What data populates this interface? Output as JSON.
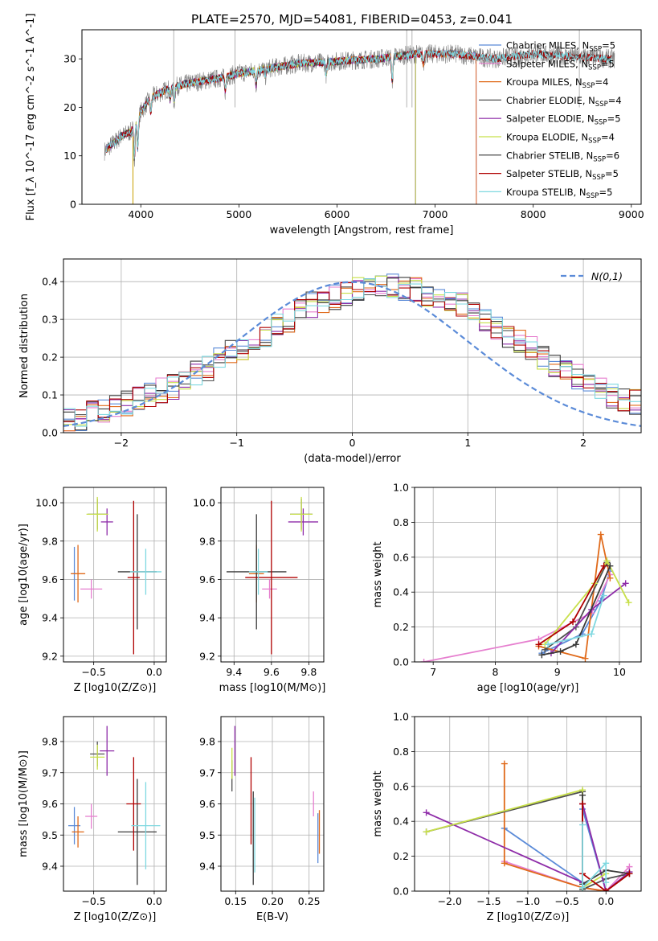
{
  "figure_title": "PLATE=2570, MJD=54081, FIBERID=0453, z=0.041",
  "colors": {
    "Chabrier MILES": "#5b8bd8",
    "Salpeter MILES": "#e67fcf",
    "Kroupa MILES": "#e06a1a",
    "Chabrier ELODIE": "#4f4f4f",
    "Salpeter ELODIE": "#8e2ca8",
    "Kroupa ELODIE": "#c8e04a",
    "Chabrier STELIB": "#3a3a3a",
    "Salpeter STELIB": "#b00000",
    "Kroupa STELIB": "#7fd8e0"
  },
  "chart_data": [
    {
      "id": "spectrum",
      "type": "line",
      "title": "PLATE=2570, MJD=54081, FIBERID=0453, z=0.041",
      "xlabel": "wavelength [Angstrom, rest frame]",
      "ylabel": "Flux [f_λ 10^-17 erg cm^-2 s^-1 A^-1]",
      "xlim": [
        3400,
        9100
      ],
      "ylim": [
        0,
        36
      ],
      "xticks": [
        4000,
        5000,
        6000,
        7000,
        8000,
        9000
      ],
      "yticks": [
        0,
        10,
        20,
        30
      ],
      "grid": false,
      "legend": "top-right",
      "data_envelope": {
        "x": [
          3630,
          3800,
          3900,
          4000,
          4100,
          4300,
          4500,
          4800,
          5000,
          5300,
          5600,
          6000,
          6400,
          6800,
          7200,
          7600,
          8000,
          8400,
          8800
        ],
        "y": [
          11,
          14,
          15,
          19,
          22,
          24,
          25,
          26,
          27,
          28,
          29,
          29.5,
          30,
          31,
          31,
          30,
          31,
          30.5,
          30
        ]
      },
      "series": [
        {
          "name": "Chabrier MILES, N_SSP=5",
          "end": 7420
        },
        {
          "name": "Salpeter MILES, N_SSP=5",
          "end": 7420
        },
        {
          "name": "Kroupa MILES, N_SSP=4",
          "end": 7420
        },
        {
          "name": "Chabrier ELODIE, N_SSP=4",
          "end": 6800
        },
        {
          "name": "Salpeter ELODIE, N_SSP=5",
          "end": 6800
        },
        {
          "name": "Kroupa ELODIE, N_SSP=4",
          "end": 6800
        },
        {
          "name": "Chabrier STELIB, N_SSP=6",
          "end": 8800
        },
        {
          "name": "Salpeter STELIB, N_SSP=5",
          "end": 8800
        },
        {
          "name": "Kroupa STELIB, N_SSP=5",
          "end": 8800
        }
      ]
    },
    {
      "id": "residuals",
      "type": "line",
      "xlabel": "(data-model)/error",
      "ylabel": "Normed distribution",
      "xlim": [
        -2.5,
        2.5
      ],
      "ylim": [
        0,
        0.46
      ],
      "xticks": [
        -2,
        -1,
        0,
        1,
        2
      ],
      "yticks": [
        0.0,
        0.1,
        0.2,
        0.3,
        0.4
      ],
      "grid": true,
      "legend": "top-right",
      "reference": {
        "name": "N(0,1)",
        "color": "#5b8bd8"
      },
      "bin_width": 0.1,
      "histogram_envelope": [
        0.03,
        0.04,
        0.05,
        0.06,
        0.07,
        0.08,
        0.09,
        0.1,
        0.11,
        0.12,
        0.14,
        0.16,
        0.17,
        0.19,
        0.21,
        0.22,
        0.24,
        0.26,
        0.28,
        0.3,
        0.32,
        0.34,
        0.35,
        0.36,
        0.37,
        0.38,
        0.38,
        0.39,
        0.39,
        0.38,
        0.38,
        0.37,
        0.36,
        0.35,
        0.34,
        0.32,
        0.3,
        0.28,
        0.26,
        0.24,
        0.22,
        0.2,
        0.18,
        0.16,
        0.15,
        0.13,
        0.12,
        0.1,
        0.09,
        0.08
      ]
    },
    {
      "id": "age_vs_Z",
      "type": "scatter",
      "xlabel": "Z [log10(Z/Z⊙)]",
      "ylabel": "age  [log10(age/yr)]",
      "xlim": [
        -0.75,
        0.1
      ],
      "ylim": [
        9.17,
        10.08
      ],
      "xticks": [
        -0.5,
        0.0
      ],
      "yticks": [
        9.2,
        9.4,
        9.6,
        9.8,
        10.0
      ],
      "grid": true,
      "points": [
        {
          "model": "Chabrier MILES",
          "x": -0.66,
          "y": 9.63,
          "xerr": 0.02,
          "yerr": 0.14
        },
        {
          "model": "Salpeter MILES",
          "x": -0.52,
          "y": 9.55,
          "xerr": 0.09,
          "yerr": 0.05
        },
        {
          "model": "Kroupa MILES",
          "x": -0.63,
          "y": 9.63,
          "xerr": 0.06,
          "yerr": 0.15
        },
        {
          "model": "Chabrier ELODIE",
          "x": -0.47,
          "y": 9.94,
          "xerr": 0.08,
          "yerr": 0.08
        },
        {
          "model": "Salpeter ELODIE",
          "x": -0.39,
          "y": 9.9,
          "xerr": 0.05,
          "yerr": 0.07
        },
        {
          "model": "Kroupa ELODIE",
          "x": -0.47,
          "y": 9.94,
          "xerr": 0.09,
          "yerr": 0.09
        },
        {
          "model": "Chabrier STELIB",
          "x": -0.14,
          "y": 9.64,
          "xerr": 0.16,
          "yerr": 0.3
        },
        {
          "model": "Salpeter STELIB",
          "x": -0.17,
          "y": 9.61,
          "xerr": 0.05,
          "yerr": 0.4
        },
        {
          "model": "Kroupa STELIB",
          "x": -0.07,
          "y": 9.64,
          "xerr": 0.13,
          "yerr": 0.12
        }
      ]
    },
    {
      "id": "age_vs_mass",
      "type": "scatter",
      "xlabel": "mass [log10(M/M⊙)]",
      "ylabel": "",
      "xlim": [
        9.33,
        9.88
      ],
      "ylim": [
        9.17,
        10.08
      ],
      "xticks": [
        9.4,
        9.6,
        9.8
      ],
      "yticks": [
        9.2,
        9.4,
        9.6,
        9.8,
        10.0
      ],
      "grid": true,
      "points": [
        {
          "model": "Chabrier MILES",
          "x": 9.52,
          "y": 9.63,
          "xerr": 0.02,
          "yerr": 0.14
        },
        {
          "model": "Salpeter MILES",
          "x": 9.59,
          "y": 9.55,
          "xerr": 0.04,
          "yerr": 0.05
        },
        {
          "model": "Kroupa MILES",
          "x": 9.52,
          "y": 9.63,
          "xerr": 0.04,
          "yerr": 0.15
        },
        {
          "model": "Chabrier ELODIE",
          "x": 9.76,
          "y": 9.94,
          "xerr": 0.06,
          "yerr": 0.08
        },
        {
          "model": "Salpeter ELODIE",
          "x": 9.77,
          "y": 9.9,
          "xerr": 0.08,
          "yerr": 0.07
        },
        {
          "model": "Kroupa ELODIE",
          "x": 9.76,
          "y": 9.94,
          "xerr": 0.06,
          "yerr": 0.09
        },
        {
          "model": "Chabrier STELIB",
          "x": 9.52,
          "y": 9.64,
          "xerr": 0.16,
          "yerr": 0.3
        },
        {
          "model": "Salpeter STELIB",
          "x": 9.6,
          "y": 9.61,
          "xerr": 0.14,
          "yerr": 0.4
        },
        {
          "model": "Kroupa STELIB",
          "x": 9.53,
          "y": 9.64,
          "xerr": 0.05,
          "yerr": 0.12
        }
      ]
    },
    {
      "id": "massweight_vs_age",
      "type": "line",
      "xlabel": "age  [log10(age/yr)]",
      "ylabel": "mass weight",
      "xlim": [
        6.7,
        10.35
      ],
      "ylim": [
        0,
        1
      ],
      "xticks": [
        7,
        8,
        9,
        10
      ],
      "yticks": [
        0.0,
        0.2,
        0.4,
        0.6,
        0.8,
        1.0
      ],
      "grid": true,
      "series": [
        {
          "model": "Chabrier MILES",
          "x": [
            8.75,
            9.4,
            9.7,
            9.85
          ],
          "y": [
            0.05,
            0.16,
            0.35,
            0.52
          ]
        },
        {
          "model": "Salpeter MILES",
          "x": [
            6.85,
            8.7,
            9.55,
            9.85
          ],
          "y": [
            0.0,
            0.13,
            0.28,
            0.5
          ]
        },
        {
          "model": "Kroupa MILES",
          "x": [
            8.7,
            9.45,
            9.7,
            9.85
          ],
          "y": [
            0.09,
            0.02,
            0.73,
            0.48
          ]
        },
        {
          "model": "Chabrier ELODIE",
          "x": [
            8.8,
            9.3,
            9.8
          ],
          "y": [
            0.07,
            0.2,
            0.57
          ]
        },
        {
          "model": "Salpeter ELODIE",
          "x": [
            8.9,
            9.55,
            10.1
          ],
          "y": [
            0.05,
            0.3,
            0.45
          ]
        },
        {
          "model": "Kroupa ELODIE",
          "x": [
            8.8,
            9.6,
            9.8,
            10.15
          ],
          "y": [
            0.1,
            0.45,
            0.58,
            0.34
          ]
        },
        {
          "model": "Chabrier STELIB",
          "x": [
            8.75,
            9.05,
            9.3,
            9.85
          ],
          "y": [
            0.04,
            0.06,
            0.1,
            0.55
          ]
        },
        {
          "model": "Salpeter STELIB",
          "x": [
            8.7,
            9.25,
            9.75
          ],
          "y": [
            0.1,
            0.23,
            0.55
          ]
        },
        {
          "model": "Kroupa STELIB",
          "x": [
            8.85,
            9.55,
            9.75
          ],
          "y": [
            0.1,
            0.16,
            0.38
          ]
        }
      ]
    },
    {
      "id": "mass_vs_Z",
      "type": "scatter",
      "xlabel": "Z [log10(Z/Z⊙)]",
      "ylabel": "mass [log10(M/M⊙)]",
      "xlim": [
        -0.75,
        0.1
      ],
      "ylim": [
        9.32,
        9.88
      ],
      "xticks": [
        -0.5,
        0.0
      ],
      "yticks": [
        9.4,
        9.5,
        9.6,
        9.7,
        9.8
      ],
      "grid": true,
      "points": [
        {
          "model": "Chabrier MILES",
          "x": -0.66,
          "y": 9.53,
          "xerr": 0.05,
          "yerr": 0.06
        },
        {
          "model": "Salpeter MILES",
          "x": -0.52,
          "y": 9.56,
          "xerr": 0.05,
          "yerr": 0.04
        },
        {
          "model": "Kroupa MILES",
          "x": -0.63,
          "y": 9.51,
          "xerr": 0.05,
          "yerr": 0.05
        },
        {
          "model": "Chabrier ELODIE",
          "x": -0.47,
          "y": 9.76,
          "xerr": 0.06,
          "yerr": 0.04
        },
        {
          "model": "Salpeter ELODIE",
          "x": -0.39,
          "y": 9.77,
          "xerr": 0.06,
          "yerr": 0.08
        },
        {
          "model": "Kroupa ELODIE",
          "x": -0.47,
          "y": 9.75,
          "xerr": 0.06,
          "yerr": 0.04
        },
        {
          "model": "Chabrier STELIB",
          "x": -0.14,
          "y": 9.51,
          "xerr": 0.16,
          "yerr": 0.17
        },
        {
          "model": "Salpeter STELIB",
          "x": -0.17,
          "y": 9.6,
          "xerr": 0.06,
          "yerr": 0.15
        },
        {
          "model": "Kroupa STELIB",
          "x": -0.07,
          "y": 9.53,
          "xerr": 0.12,
          "yerr": 0.14
        }
      ]
    },
    {
      "id": "mass_vs_ebv",
      "type": "scatter",
      "xlabel": "E(B-V)",
      "ylabel": "",
      "xlim": [
        0.13,
        0.27
      ],
      "ylim": [
        9.32,
        9.88
      ],
      "xticks": [
        0.15,
        0.2,
        0.25
      ],
      "yticks": [
        9.4,
        9.5,
        9.6,
        9.7,
        9.8
      ],
      "grid": true,
      "points": [
        {
          "model": "Chabrier MILES",
          "x": 0.262,
          "y": 9.49,
          "yerr": 0.08
        },
        {
          "model": "Salpeter MILES",
          "x": 0.256,
          "y": 9.6,
          "yerr": 0.04
        },
        {
          "model": "Kroupa MILES",
          "x": 0.264,
          "y": 9.51,
          "yerr": 0.07
        },
        {
          "model": "Chabrier ELODIE",
          "x": 0.145,
          "y": 9.69,
          "yerr": 0.05
        },
        {
          "model": "Salpeter ELODIE",
          "x": 0.149,
          "y": 9.77,
          "yerr": 0.08
        },
        {
          "model": "Kroupa ELODIE",
          "x": 0.145,
          "y": 9.73,
          "yerr": 0.05
        },
        {
          "model": "Chabrier STELIB",
          "x": 0.174,
          "y": 9.49,
          "yerr": 0.15
        },
        {
          "model": "Salpeter STELIB",
          "x": 0.171,
          "y": 9.61,
          "yerr": 0.14
        },
        {
          "model": "Kroupa STELIB",
          "x": 0.176,
          "y": 9.5,
          "yerr": 0.12
        }
      ]
    },
    {
      "id": "massweight_vs_Z",
      "type": "line",
      "xlabel": "Z [log10(Z/Z⊙)]",
      "ylabel": "mass weight",
      "xlim": [
        -2.45,
        0.45
      ],
      "ylim": [
        0,
        1
      ],
      "xticks": [
        -2.0,
        -1.5,
        -1.0,
        -0.5,
        0.0
      ],
      "yticks": [
        0.0,
        0.2,
        0.4,
        0.6,
        0.8,
        1.0
      ],
      "grid": true,
      "series": [
        {
          "model": "Chabrier MILES",
          "x": [
            -1.3,
            -0.3,
            -0.3,
            0.0,
            0.3
          ],
          "y": [
            0.36,
            0.05,
            0.47,
            0.0,
            0.1
          ]
        },
        {
          "model": "Salpeter MILES",
          "x": [
            -1.3,
            -0.3,
            0.0,
            0.3
          ],
          "y": [
            0.17,
            0.02,
            0.0,
            0.14
          ]
        },
        {
          "model": "Kroupa MILES",
          "x": [
            -1.3,
            -1.3,
            -0.3,
            0.0,
            0.3
          ],
          "y": [
            0.73,
            0.16,
            0.02,
            0.0,
            0.1
          ]
        },
        {
          "model": "Chabrier ELODIE",
          "x": [
            -2.3,
            -0.3,
            -0.3,
            0.0,
            0.3
          ],
          "y": [
            0.34,
            0.57,
            0.01,
            0.07,
            0.1
          ]
        },
        {
          "model": "Salpeter ELODIE",
          "x": [
            -2.3,
            -0.3,
            -0.3,
            0.0,
            0.3
          ],
          "y": [
            0.45,
            0.05,
            0.5,
            0.0,
            0.11
          ]
        },
        {
          "model": "Kroupa ELODIE",
          "x": [
            -2.3,
            -0.3,
            -0.3,
            0.0
          ],
          "y": [
            0.34,
            0.58,
            0.02,
            0.1
          ]
        },
        {
          "model": "Chabrier STELIB",
          "x": [
            -0.3,
            -0.3,
            0.0,
            0.3
          ],
          "y": [
            0.55,
            0.04,
            0.12,
            0.1
          ]
        },
        {
          "model": "Salpeter STELIB",
          "x": [
            -0.3,
            -0.3,
            0.0,
            0.3
          ],
          "y": [
            0.5,
            0.1,
            0.0,
            0.1
          ]
        },
        {
          "model": "Kroupa STELIB",
          "x": [
            -0.3,
            -0.3,
            0.0,
            0.0
          ],
          "y": [
            0.38,
            0.02,
            0.16,
            0.05
          ]
        }
      ]
    }
  ]
}
